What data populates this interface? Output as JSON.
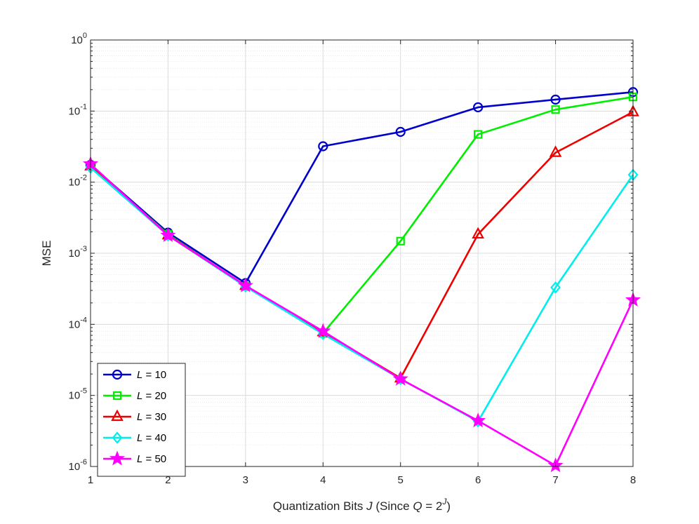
{
  "chart_data": {
    "type": "line",
    "xlabel": "Quantization Bits J (Since Q = 2^J)",
    "xlabel_parts": {
      "prefix": "Quantization Bits ",
      "var": "J",
      "mid": " (Since ",
      "q": "Q",
      "eq": " = 2",
      "exp": "J",
      "suffix": ")"
    },
    "ylabel": "MSE",
    "yscale": "log",
    "xlim": [
      1,
      8
    ],
    "ylim": [
      1e-06,
      1
    ],
    "x": [
      1,
      2,
      3,
      4,
      5,
      6,
      7,
      8
    ],
    "xticks": [
      "1",
      "2",
      "3",
      "4",
      "5",
      "6",
      "7",
      "8"
    ],
    "yticks": [
      {
        "base": "10",
        "exp": "-6",
        "value": 1e-06
      },
      {
        "base": "10",
        "exp": "-5",
        "value": 1e-05
      },
      {
        "base": "10",
        "exp": "-4",
        "value": 0.0001
      },
      {
        "base": "10",
        "exp": "-3",
        "value": 0.001
      },
      {
        "base": "10",
        "exp": "-2",
        "value": 0.01
      },
      {
        "base": "10",
        "exp": "-1",
        "value": 0.1
      },
      {
        "base": "10",
        "exp": "0",
        "value": 1
      }
    ],
    "grid": true,
    "legend_position": "bottom-left",
    "series": [
      {
        "name": "L = 10",
        "var": "L",
        "num": " = 10",
        "color": "#0000cc",
        "marker": "circle",
        "values": [
          0.0175,
          0.00195,
          0.00038,
          0.032,
          0.051,
          0.113,
          0.145,
          0.185
        ]
      },
      {
        "name": "L = 20",
        "var": "L",
        "num": " = 20",
        "color": "#00ee00",
        "marker": "square",
        "values": [
          0.017,
          0.00185,
          0.00034,
          7.5e-05,
          0.00148,
          0.047,
          0.105,
          0.158
        ]
      },
      {
        "name": "L = 30",
        "var": "L",
        "num": " = 30",
        "color": "#ee0000",
        "marker": "triangle",
        "values": [
          0.0168,
          0.0018,
          0.00035,
          7.8e-05,
          1.75e-05,
          0.00185,
          0.026,
          0.097
        ]
      },
      {
        "name": "L = 40",
        "var": "L",
        "num": " = 40",
        "color": "#00eeee",
        "marker": "diamond",
        "values": [
          0.016,
          0.00178,
          0.00034,
          7.3e-05,
          1.7e-05,
          4.3e-06,
          0.00033,
          0.0127
        ]
      },
      {
        "name": "L = 50",
        "var": "L",
        "num": " = 50",
        "color": "#ff00ff",
        "marker": "star",
        "values": [
          0.018,
          0.00178,
          0.00035,
          8e-05,
          1.7e-05,
          4.4e-06,
          1.03e-06,
          0.00022
        ]
      }
    ]
  }
}
